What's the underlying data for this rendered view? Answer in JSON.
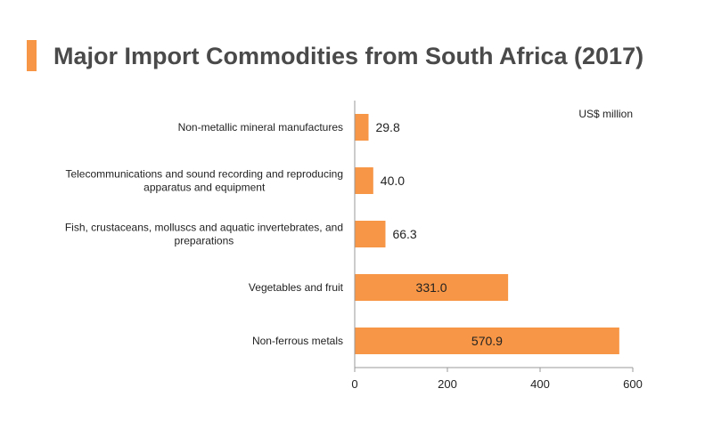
{
  "chart_data": {
    "type": "bar",
    "orientation": "horizontal",
    "title": "Major Import Commodities from South Africa (2017)",
    "unit_label": "US$ million",
    "categories": [
      "Non-metallic mineral manufactures",
      "Telecommunications and sound recording and reproducing apparatus and equipment",
      "Fish, crustaceans, molluscs and aquatic invertebrates, and preparations",
      "Vegetables and fruit",
      "Non-ferrous metals"
    ],
    "category_lines": [
      [
        "Non-metallic mineral manufactures"
      ],
      [
        "Telecommunications and sound recording and reproducing",
        "apparatus and equipment"
      ],
      [
        "Fish, crustaceans, molluscs and aquatic invertebrates, and",
        "preparations"
      ],
      [
        "Vegetables and fruit"
      ],
      [
        "Non-ferrous metals"
      ]
    ],
    "values": [
      29.8,
      40.0,
      66.3,
      331.0,
      570.9
    ],
    "value_labels": [
      "29.8",
      "40.0",
      "66.3",
      "331.0",
      "570.9"
    ],
    "xlim": [
      0,
      600
    ],
    "xticks": [
      0,
      200,
      400,
      600
    ],
    "xtick_labels": [
      "0",
      "200",
      "400",
      "600"
    ],
    "grid": false,
    "legend": "none",
    "bar_color": "#f79646",
    "accent_color": "#f79646"
  }
}
